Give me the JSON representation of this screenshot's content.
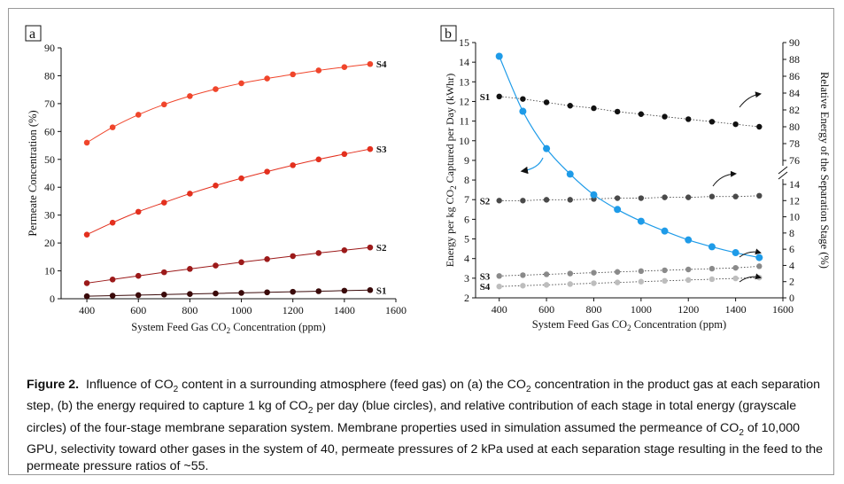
{
  "figure": {
    "caption": {
      "label": "Figure 2.",
      "p1": "Influence of CO",
      "p2": " content in a surrounding atmosphere (feed gas) on (a) the CO",
      "p3": " concentration in the product gas at each separation step, (b) the energy required to capture 1 kg of CO",
      "p4": " per day (blue circles), and relative contribution of each stage in total energy (grayscale circles) of the four-stage membrane separation system. Membrane properties used in simulation assumed the permeance of CO",
      "p5": " of 10,000 GPU, selectivity toward other gases in the system of 40, permeate pressures of 2 kPa used at each separation stage resulting in the feed to the permeate pressure ratios of ~55.",
      "sub": "2"
    }
  },
  "chart_data": [
    {
      "panel": "a",
      "type": "line",
      "xlabel": "System Feed Gas CO2 Concentration (ppm)",
      "ylabel": "Permeate Concentration (%)",
      "xlim": [
        300,
        1600
      ],
      "ylim": [
        0,
        90
      ],
      "xticks": [
        400,
        600,
        800,
        1000,
        1200,
        1400,
        1600
      ],
      "yticks": [
        0,
        10,
        20,
        30,
        40,
        50,
        60,
        70,
        80,
        90
      ],
      "x": [
        400,
        500,
        600,
        700,
        800,
        900,
        1000,
        1100,
        1200,
        1300,
        1400,
        1500
      ],
      "series": [
        {
          "name": "S4",
          "color": "#f0452b",
          "values": [
            56.0,
            61.5,
            66.0,
            69.7,
            72.7,
            75.2,
            77.3,
            79.0,
            80.5,
            81.9,
            83.1,
            84.2
          ]
        },
        {
          "name": "S3",
          "color": "#e3301e",
          "values": [
            23.0,
            27.3,
            31.2,
            34.5,
            37.7,
            40.6,
            43.2,
            45.6,
            47.9,
            50.0,
            51.9,
            53.7
          ]
        },
        {
          "name": "S2",
          "color": "#9c1a1a",
          "values": [
            5.6,
            6.9,
            8.2,
            9.5,
            10.7,
            11.9,
            13.1,
            14.2,
            15.3,
            16.4,
            17.4,
            18.4
          ]
        },
        {
          "name": "S1",
          "color": "#3a0a0a",
          "values": [
            0.9,
            1.1,
            1.3,
            1.5,
            1.7,
            1.9,
            2.1,
            2.3,
            2.5,
            2.7,
            2.9,
            3.1
          ]
        }
      ]
    },
    {
      "panel": "b",
      "type": "line",
      "xlabel": "System Feed Gas CO2 Concentration (ppm)",
      "ylabel_left": "Energy per kg CO2 Captured per Day (kWhr)",
      "ylabel_right": "Relative Energy of the Separation Stage (%)",
      "xlim": [
        300,
        1600
      ],
      "ylim_left": [
        2,
        15
      ],
      "yticks_left": [
        2,
        3,
        4,
        5,
        6,
        7,
        8,
        9,
        10,
        11,
        12,
        13,
        14,
        15
      ],
      "right_axis": "broken (0-14, 76-90)",
      "yticks_right_low": [
        0,
        2,
        4,
        6,
        8,
        10,
        12,
        14
      ],
      "yticks_right_high": [
        76,
        78,
        80,
        82,
        84,
        86,
        88,
        90
      ],
      "x": [
        400,
        500,
        600,
        700,
        800,
        900,
        1000,
        1100,
        1200,
        1300,
        1400,
        1500
      ],
      "energy": {
        "axis": "left",
        "color": "#1e9be8",
        "values": [
          14.3,
          11.5,
          9.6,
          8.3,
          7.25,
          6.5,
          5.9,
          5.4,
          4.95,
          4.6,
          4.3,
          4.05
        ]
      },
      "stages": [
        {
          "name": "S1",
          "axis": "right",
          "color": "#111111",
          "values": [
            83.6,
            83.3,
            82.9,
            82.5,
            82.2,
            81.8,
            81.5,
            81.2,
            80.9,
            80.6,
            80.3,
            80.0
          ]
        },
        {
          "name": "S2",
          "axis": "right",
          "color": "#4a4a4a",
          "values": [
            12.0,
            12.0,
            12.1,
            12.1,
            12.2,
            12.3,
            12.3,
            12.4,
            12.4,
            12.5,
            12.5,
            12.6
          ]
        },
        {
          "name": "S3",
          "axis": "right",
          "color": "#8a8a8a",
          "values": [
            2.7,
            2.8,
            2.9,
            3.0,
            3.1,
            3.2,
            3.3,
            3.4,
            3.5,
            3.6,
            3.7,
            3.9
          ]
        },
        {
          "name": "S4",
          "axis": "right",
          "color": "#bdbdbd",
          "values": [
            1.4,
            1.5,
            1.6,
            1.7,
            1.8,
            1.9,
            2.0,
            2.1,
            2.2,
            2.3,
            2.4,
            2.5
          ]
        }
      ]
    }
  ]
}
